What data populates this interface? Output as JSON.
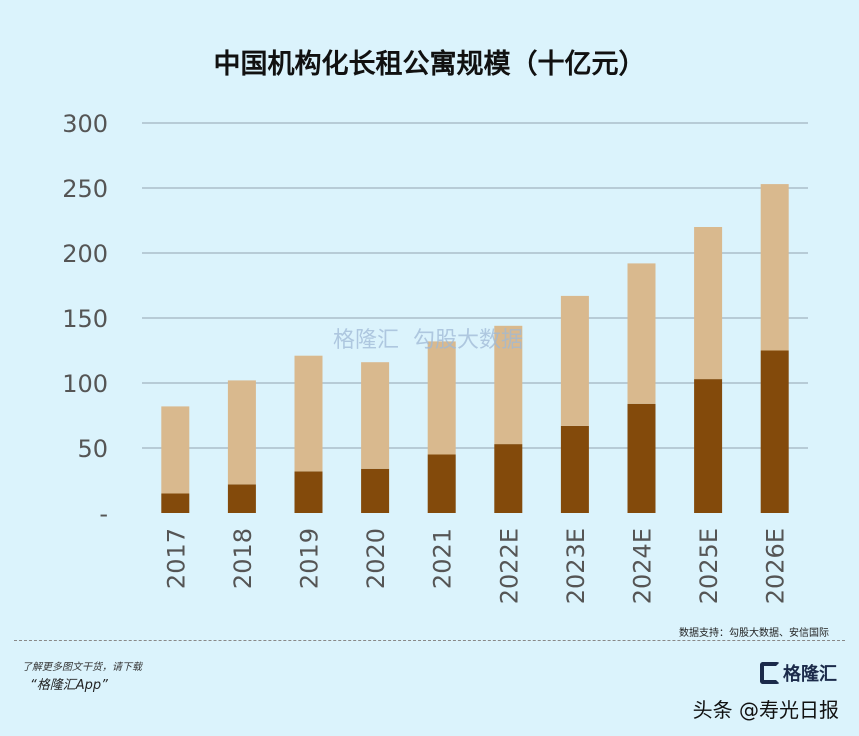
{
  "chart_data": {
    "type": "bar",
    "stacked": true,
    "title": "中国机构化长租公寓规模（十亿元）",
    "categories": [
      "2017",
      "2018",
      "2019",
      "2020",
      "2021",
      "2022E",
      "2023E",
      "2024E",
      "2025E",
      "2026E"
    ],
    "series": [
      {
        "values": [
          15,
          22,
          32,
          34,
          45,
          53,
          67,
          84,
          103,
          125
        ],
        "color": "#834a0b"
      },
      {
        "values": [
          67,
          80,
          89,
          82,
          87,
          91,
          100,
          108,
          117,
          128
        ],
        "color": "#d9b98e"
      }
    ],
    "totals": [
      82,
      102,
      121,
      116,
      132,
      144,
      167,
      192,
      220,
      253
    ],
    "yticks": [
      {
        "v": 0,
        "label": "-"
      },
      {
        "v": 50,
        "label": "50"
      },
      {
        "v": 100,
        "label": "100"
      },
      {
        "v": 150,
        "label": "150"
      },
      {
        "v": 200,
        "label": "200"
      },
      {
        "v": 250,
        "label": "250"
      },
      {
        "v": 300,
        "label": "300"
      }
    ],
    "ylim": [
      0,
      300
    ],
    "grid": true
  },
  "watermark": {
    "brand": "格隆汇",
    "brand_url": "www.gelonghui.com",
    "partner": "勾股大数据",
    "partner_url": "www.gogudata.com"
  },
  "footer": {
    "source": "数据支持：勾股大数据、安信国际",
    "promo_line1": "了解更多图文干货，请下载",
    "promo_line2": "“格隆汇App”",
    "logo_text": "格隆汇",
    "credit": "头条 @寿光日报"
  }
}
